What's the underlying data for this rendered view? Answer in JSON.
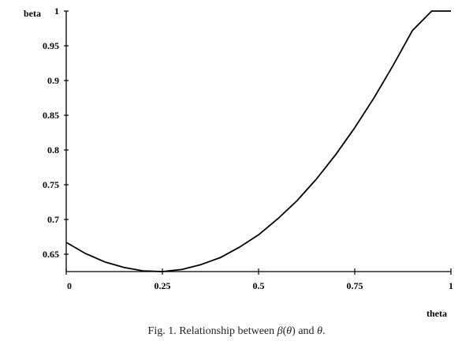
{
  "chart_data": {
    "type": "line",
    "title": "",
    "xlabel": "theta",
    "ylabel": "beta",
    "xlim": [
      0,
      1
    ],
    "ylim": [
      0.625,
      1
    ],
    "grid": false,
    "legend": "none",
    "x_ticks": [
      0,
      0.25,
      0.5,
      0.75,
      1
    ],
    "x_tick_labels": [
      "0",
      "0.25",
      "0.5",
      "0.75",
      "1"
    ],
    "y_ticks": [
      0.65,
      0.7,
      0.75,
      0.8,
      0.85,
      0.9,
      0.95,
      1
    ],
    "y_tick_labels": [
      "0.65",
      "0.7",
      "0.75",
      "0.8",
      "0.85",
      "0.9",
      "0.95",
      "1"
    ],
    "series": [
      {
        "x": [
          0,
          0.05,
          0.1,
          0.15,
          0.2,
          0.25,
          0.3,
          0.35,
          0.4,
          0.45,
          0.5,
          0.55,
          0.6,
          0.65,
          0.7,
          0.75,
          0.8,
          0.85,
          0.9,
          0.95,
          1
        ],
        "values": [
          0.667,
          0.651,
          0.639,
          0.631,
          0.626,
          0.625,
          0.628,
          0.635,
          0.645,
          0.66,
          0.678,
          0.701,
          0.727,
          0.758,
          0.793,
          0.832,
          0.875,
          0.922,
          0.972,
          1.026,
          1.0
        ],
        "color": "#000000"
      }
    ]
  },
  "caption": {
    "prefix": "Fig. 1. Relationship between ",
    "beta_symbol": "β",
    "open_paren": "(",
    "theta_symbol": "θ",
    "close_paren": ")",
    "middle": " and ",
    "theta_symbol_2": "θ",
    "suffix": "."
  }
}
